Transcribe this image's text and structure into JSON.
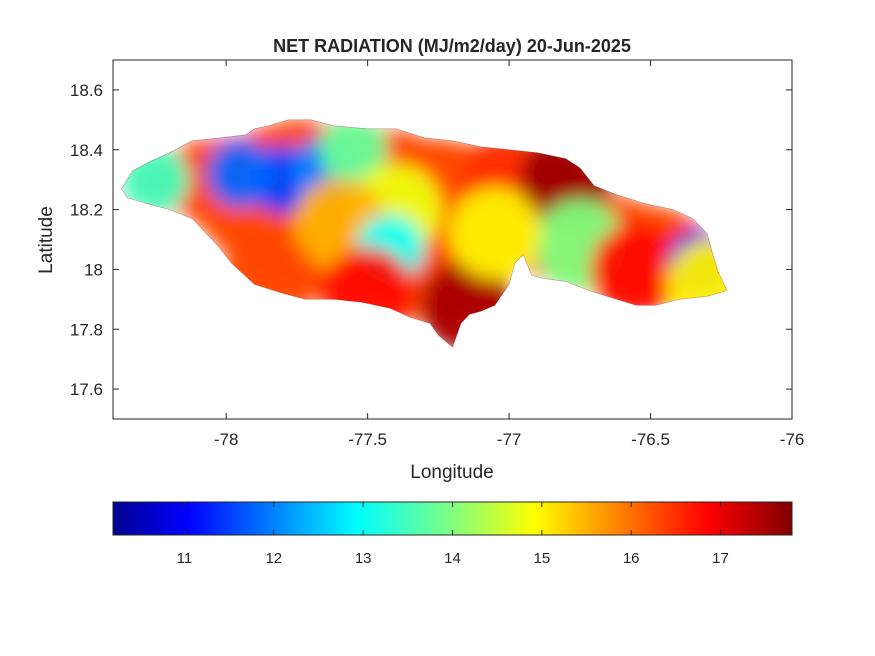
{
  "title": "NET RADIATION (MJ/m2/day) 20-Jun-2025",
  "xlabel": "Longitude",
  "ylabel": "Latitude",
  "xlim": [
    -78.4,
    -76.0
  ],
  "ylim": [
    17.5,
    18.7
  ],
  "xticks": [
    "-78",
    "-77.5",
    "-77",
    "-76.5",
    "-76"
  ],
  "yticks": [
    "17.6",
    "17.8",
    "18",
    "18.2",
    "18.4",
    "18.6"
  ],
  "colorbar": {
    "colormap": "jet",
    "range": [
      10.2,
      17.8
    ],
    "ticks": [
      "11",
      "12",
      "13",
      "14",
      "15",
      "16",
      "17"
    ]
  },
  "chart_data": {
    "type": "heatmap",
    "title": "NET RADIATION (MJ/m2/day) 20-Jun-2025",
    "xlabel": "Longitude",
    "ylabel": "Latitude",
    "xlim": [
      -78.4,
      -76.0
    ],
    "ylim": [
      17.5,
      18.7
    ],
    "grid": false,
    "colorbar_range": [
      10.2,
      17.8
    ],
    "colorbar_location": "bottom",
    "features": [
      {
        "lon": -77.8,
        "lat": 18.3,
        "value": 11.5
      },
      {
        "lon": -77.95,
        "lat": 18.32,
        "value": 11.8
      },
      {
        "lon": -77.65,
        "lat": 18.33,
        "value": 12.0
      },
      {
        "lon": -78.25,
        "lat": 18.3,
        "value": 13.5
      },
      {
        "lon": -77.55,
        "lat": 18.4,
        "value": 13.8
      },
      {
        "lon": -77.4,
        "lat": 18.2,
        "value": 14.8
      },
      {
        "lon": -77.6,
        "lat": 18.15,
        "value": 15.5
      },
      {
        "lon": -77.42,
        "lat": 18.07,
        "value": 13.0
      },
      {
        "lon": -77.0,
        "lat": 18.3,
        "value": 16.5
      },
      {
        "lon": -76.8,
        "lat": 18.3,
        "value": 17.6
      },
      {
        "lon": -77.15,
        "lat": 17.88,
        "value": 17.5
      },
      {
        "lon": -77.5,
        "lat": 17.92,
        "value": 16.8
      },
      {
        "lon": -77.85,
        "lat": 17.97,
        "value": 16.3
      },
      {
        "lon": -76.75,
        "lat": 18.08,
        "value": 14.0
      },
      {
        "lon": -76.55,
        "lat": 18.0,
        "value": 16.8
      },
      {
        "lon": -76.32,
        "lat": 18.02,
        "value": 11.0
      },
      {
        "lon": -76.28,
        "lat": 17.95,
        "value": 15.0
      },
      {
        "lon": -77.05,
        "lat": 18.12,
        "value": 15.0
      }
    ]
  }
}
